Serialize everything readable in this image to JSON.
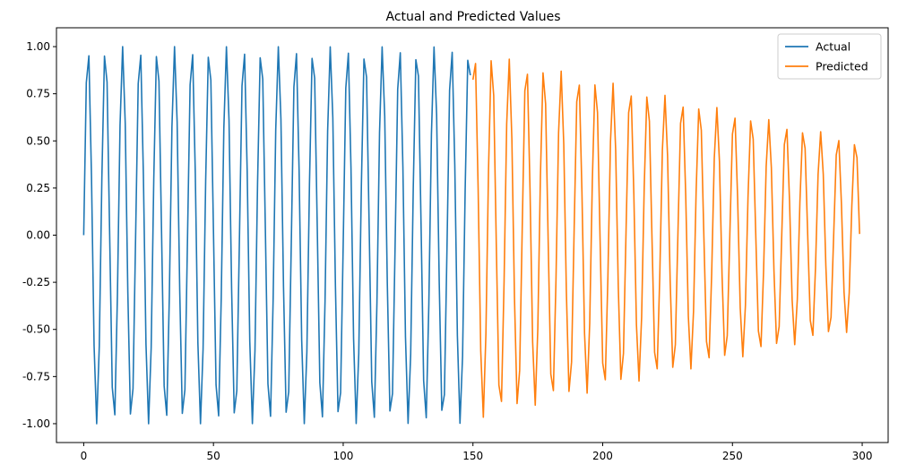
{
  "chart_data": {
    "type": "line",
    "title": "Actual and Predicted Values",
    "xlabel": "",
    "ylabel": "",
    "xlim": [
      -10.5,
      310
    ],
    "ylim": [
      -1.1,
      1.1
    ],
    "xticks": [
      0,
      50,
      100,
      150,
      200,
      250,
      300
    ],
    "yticks": [
      -1.0,
      -0.75,
      -0.5,
      -0.25,
      0.0,
      0.25,
      0.5,
      0.75,
      1.0
    ],
    "grid": false,
    "legend_position": "top-right",
    "series": [
      {
        "name": "Actual",
        "color": "#1f77b4",
        "x_start": 0,
        "period": 6.67,
        "amplitude_start": 1.0,
        "amplitude_end": 1.0,
        "count": 150
      },
      {
        "name": "Predicted",
        "color": "#ff7f0e",
        "x_start": 150,
        "period": 6.67,
        "amplitude_start": 0.98,
        "amplitude_end": 0.5,
        "count": 150
      }
    ]
  }
}
